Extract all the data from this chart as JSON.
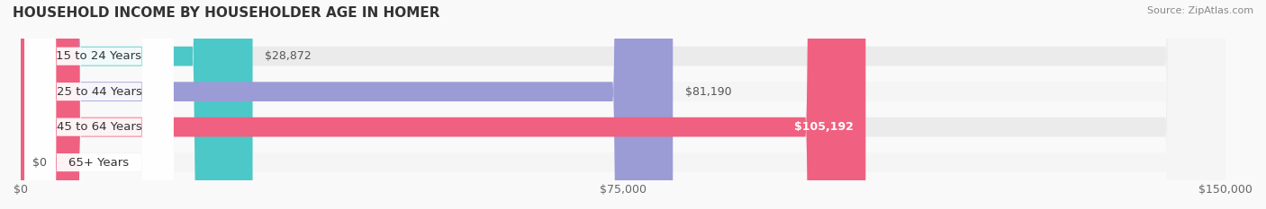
{
  "title": "HOUSEHOLD INCOME BY HOUSEHOLDER AGE IN HOMER",
  "source": "Source: ZipAtlas.com",
  "categories": [
    "15 to 24 Years",
    "25 to 44 Years",
    "45 to 64 Years",
    "65+ Years"
  ],
  "values": [
    28872,
    81190,
    105192,
    0
  ],
  "bar_colors": [
    "#4DC8C8",
    "#9B9BD6",
    "#F06080",
    "#F5C897"
  ],
  "bg_colors": [
    "#EBEBEB",
    "#F5F5F5",
    "#EBEBEB",
    "#F5F5F5"
  ],
  "value_labels": [
    "$28,872",
    "$81,190",
    "$105,192",
    "$0"
  ],
  "label_inside": [
    false,
    false,
    true,
    false
  ],
  "xlim": [
    0,
    150000
  ],
  "xticks": [
    0,
    75000,
    150000
  ],
  "xtick_labels": [
    "$0",
    "$75,000",
    "$150,000"
  ],
  "figsize": [
    14.06,
    2.33
  ],
  "dpi": 100
}
